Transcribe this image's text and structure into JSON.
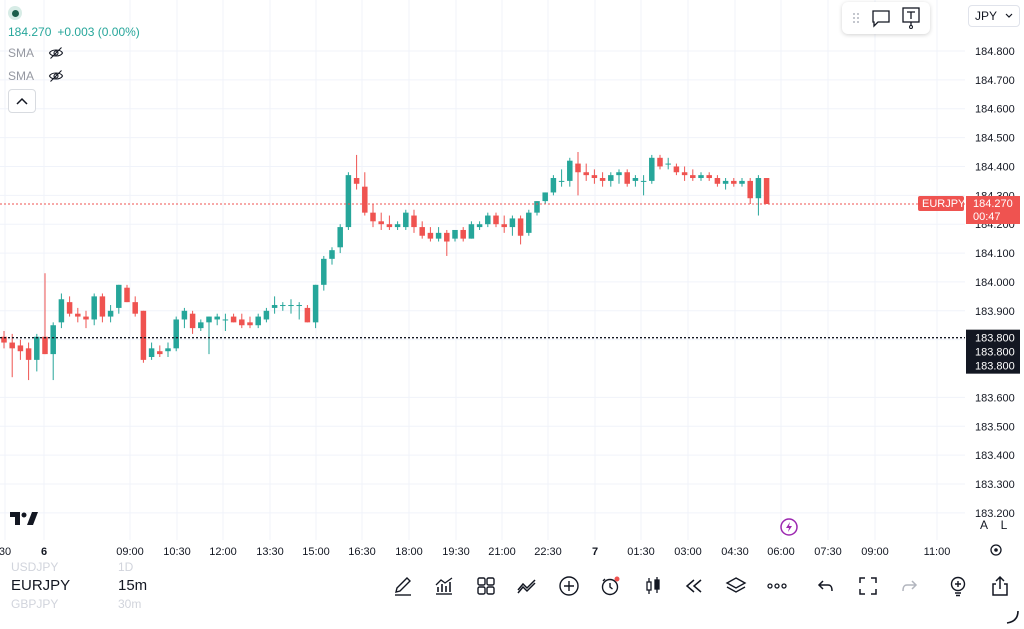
{
  "legend": {
    "price": "184.270",
    "change": "+0.003 (0.00%)",
    "indicators": [
      {
        "label": "SMA"
      },
      {
        "label": "SMA"
      }
    ]
  },
  "currency_selector": {
    "value": "JPY"
  },
  "scale_buttons": {
    "auto": "A",
    "log": "L"
  },
  "symbol_wheel": {
    "prev": "USDJPY",
    "current": "EURJPY",
    "next": "GBPJPY"
  },
  "timeframe_wheel": {
    "prev": "1D",
    "current": "15m",
    "next": "30m"
  },
  "colors": {
    "up": "#26a69a",
    "down": "#ef5350",
    "grid": "#f0f3fa",
    "price_line": "#ef5350",
    "crosshair": "#131722"
  },
  "icons": [
    "tradingview-logo-icon",
    "pencil-icon",
    "indicators-icon",
    "grid-layout-icon",
    "compare-icon",
    "plus-circle-icon",
    "alarm-icon",
    "candles-icon",
    "replay-icon",
    "layers-icon",
    "more-icon",
    "undo-icon",
    "fullscreen-icon",
    "redo-icon",
    "bulb-icon",
    "share-icon",
    "lightning-icon",
    "eye-off-icon",
    "chevron-up-icon",
    "chevron-down-icon",
    "chat-icon",
    "text-tool-icon",
    "gear-icon"
  ],
  "chart_data": {
    "type": "candlestick",
    "symbol": "EURJPY",
    "y_ticks": [
      "184.800",
      "184.700",
      "184.600",
      "184.500",
      "184.400",
      "184.300",
      "184.200",
      "184.100",
      "184.000",
      "183.900",
      "183.800",
      "183.600",
      "183.500",
      "183.400",
      "183.300",
      "183.200"
    ],
    "x_ticks": [
      "30",
      "6",
      "09:00",
      "10:30",
      "12:00",
      "13:30",
      "15:00",
      "16:30",
      "18:00",
      "19:30",
      "21:00",
      "22:30",
      "7",
      "01:30",
      "03:00",
      "04:30",
      "06:00",
      "07:30",
      "09:00",
      "11:00"
    ],
    "ylim": [
      183.2,
      184.85
    ],
    "last_price": {
      "label": "EURJPY",
      "value": "184.270",
      "countdown": "00:47"
    },
    "crosshair": {
      "value": "183.800",
      "value2": "183.800",
      "value3": "183.800"
    },
    "candles": [
      {
        "o": 183.81,
        "h": 183.83,
        "l": 183.77,
        "c": 183.79
      },
      {
        "o": 183.79,
        "h": 183.82,
        "l": 183.67,
        "c": 183.77
      },
      {
        "o": 183.78,
        "h": 183.8,
        "l": 183.73,
        "c": 183.76
      },
      {
        "o": 183.77,
        "h": 183.79,
        "l": 183.66,
        "c": 183.73
      },
      {
        "o": 183.73,
        "h": 183.82,
        "l": 183.69,
        "c": 183.81
      },
      {
        "o": 183.81,
        "h": 184.03,
        "l": 183.75,
        "c": 183.75
      },
      {
        "o": 183.75,
        "h": 183.86,
        "l": 183.66,
        "c": 183.85
      },
      {
        "o": 183.86,
        "h": 183.96,
        "l": 183.84,
        "c": 183.94
      },
      {
        "o": 183.93,
        "h": 183.95,
        "l": 183.88,
        "c": 183.89
      },
      {
        "o": 183.89,
        "h": 183.91,
        "l": 183.86,
        "c": 183.88
      },
      {
        "o": 183.88,
        "h": 183.9,
        "l": 183.84,
        "c": 183.87
      },
      {
        "o": 183.87,
        "h": 183.96,
        "l": 183.85,
        "c": 183.95
      },
      {
        "o": 183.95,
        "h": 183.96,
        "l": 183.86,
        "c": 183.88
      },
      {
        "o": 183.88,
        "h": 183.92,
        "l": 183.86,
        "c": 183.9
      },
      {
        "o": 183.91,
        "h": 183.99,
        "l": 183.89,
        "c": 183.99
      },
      {
        "o": 183.98,
        "h": 183.99,
        "l": 183.93,
        "c": 183.93
      },
      {
        "o": 183.93,
        "h": 183.95,
        "l": 183.88,
        "c": 183.89
      },
      {
        "o": 183.9,
        "h": 183.9,
        "l": 183.72,
        "c": 183.73
      },
      {
        "o": 183.74,
        "h": 183.79,
        "l": 183.73,
        "c": 183.77
      },
      {
        "o": 183.76,
        "h": 183.78,
        "l": 183.74,
        "c": 183.75
      },
      {
        "o": 183.76,
        "h": 183.79,
        "l": 183.74,
        "c": 183.77
      },
      {
        "o": 183.77,
        "h": 183.88,
        "l": 183.76,
        "c": 183.87
      },
      {
        "o": 183.87,
        "h": 183.91,
        "l": 183.84,
        "c": 183.9
      },
      {
        "o": 183.89,
        "h": 183.9,
        "l": 183.82,
        "c": 183.84
      },
      {
        "o": 183.84,
        "h": 183.87,
        "l": 183.83,
        "c": 183.86
      },
      {
        "o": 183.86,
        "h": 183.88,
        "l": 183.75,
        "c": 183.88
      },
      {
        "o": 183.87,
        "h": 183.89,
        "l": 183.85,
        "c": 183.88
      },
      {
        "o": 183.87,
        "h": 183.89,
        "l": 183.83,
        "c": 183.87
      },
      {
        "o": 183.88,
        "h": 183.89,
        "l": 183.86,
        "c": 183.86
      },
      {
        "o": 183.87,
        "h": 183.89,
        "l": 183.84,
        "c": 183.85
      },
      {
        "o": 183.86,
        "h": 183.88,
        "l": 183.84,
        "c": 183.85
      },
      {
        "o": 183.85,
        "h": 183.89,
        "l": 183.84,
        "c": 183.88
      },
      {
        "o": 183.87,
        "h": 183.91,
        "l": 183.86,
        "c": 183.9
      },
      {
        "o": 183.91,
        "h": 183.95,
        "l": 183.89,
        "c": 183.92
      },
      {
        "o": 183.92,
        "h": 183.93,
        "l": 183.9,
        "c": 183.92
      },
      {
        "o": 183.92,
        "h": 183.94,
        "l": 183.89,
        "c": 183.92
      },
      {
        "o": 183.92,
        "h": 183.93,
        "l": 183.87,
        "c": 183.92
      },
      {
        "o": 183.91,
        "h": 183.92,
        "l": 183.86,
        "c": 183.86
      },
      {
        "o": 183.86,
        "h": 183.99,
        "l": 183.84,
        "c": 183.99
      },
      {
        "o": 183.99,
        "h": 184.09,
        "l": 183.97,
        "c": 184.08
      },
      {
        "o": 184.08,
        "h": 184.12,
        "l": 184.06,
        "c": 184.11
      },
      {
        "o": 184.12,
        "h": 184.2,
        "l": 184.1,
        "c": 184.19
      },
      {
        "o": 184.19,
        "h": 184.38,
        "l": 184.18,
        "c": 184.37
      },
      {
        "o": 184.36,
        "h": 184.44,
        "l": 184.32,
        "c": 184.34
      },
      {
        "o": 184.33,
        "h": 184.38,
        "l": 184.23,
        "c": 184.24
      },
      {
        "o": 184.24,
        "h": 184.27,
        "l": 184.19,
        "c": 184.21
      },
      {
        "o": 184.21,
        "h": 184.24,
        "l": 184.18,
        "c": 184.2
      },
      {
        "o": 184.2,
        "h": 184.23,
        "l": 184.18,
        "c": 184.19
      },
      {
        "o": 184.19,
        "h": 184.21,
        "l": 184.18,
        "c": 184.2
      },
      {
        "o": 184.19,
        "h": 184.25,
        "l": 184.18,
        "c": 184.24
      },
      {
        "o": 184.23,
        "h": 184.25,
        "l": 184.17,
        "c": 184.19
      },
      {
        "o": 184.19,
        "h": 184.21,
        "l": 184.15,
        "c": 184.16
      },
      {
        "o": 184.17,
        "h": 184.19,
        "l": 184.14,
        "c": 184.15
      },
      {
        "o": 184.15,
        "h": 184.19,
        "l": 184.14,
        "c": 184.17
      },
      {
        "o": 184.17,
        "h": 184.18,
        "l": 184.09,
        "c": 184.14
      },
      {
        "o": 184.15,
        "h": 184.18,
        "l": 184.14,
        "c": 184.18
      },
      {
        "o": 184.18,
        "h": 184.19,
        "l": 184.14,
        "c": 184.15
      },
      {
        "o": 184.15,
        "h": 184.21,
        "l": 184.15,
        "c": 184.2
      },
      {
        "o": 184.19,
        "h": 184.21,
        "l": 184.18,
        "c": 184.2
      },
      {
        "o": 184.2,
        "h": 184.24,
        "l": 184.19,
        "c": 184.23
      },
      {
        "o": 184.23,
        "h": 184.24,
        "l": 184.19,
        "c": 184.2
      },
      {
        "o": 184.2,
        "h": 184.23,
        "l": 184.17,
        "c": 184.19
      },
      {
        "o": 184.19,
        "h": 184.23,
        "l": 184.16,
        "c": 184.22
      },
      {
        "o": 184.22,
        "h": 184.23,
        "l": 184.13,
        "c": 184.16
      },
      {
        "o": 184.17,
        "h": 184.25,
        "l": 184.16,
        "c": 184.24
      },
      {
        "o": 184.24,
        "h": 184.28,
        "l": 184.23,
        "c": 184.28
      },
      {
        "o": 184.28,
        "h": 184.31,
        "l": 184.27,
        "c": 184.31
      },
      {
        "o": 184.31,
        "h": 184.37,
        "l": 184.3,
        "c": 184.36
      },
      {
        "o": 184.35,
        "h": 184.39,
        "l": 184.33,
        "c": 184.35
      },
      {
        "o": 184.35,
        "h": 184.43,
        "l": 184.33,
        "c": 184.42
      },
      {
        "o": 184.41,
        "h": 184.45,
        "l": 184.3,
        "c": 184.38
      },
      {
        "o": 184.38,
        "h": 184.41,
        "l": 184.35,
        "c": 184.37
      },
      {
        "o": 184.37,
        "h": 184.39,
        "l": 184.34,
        "c": 184.36
      },
      {
        "o": 184.36,
        "h": 184.38,
        "l": 184.33,
        "c": 184.35
      },
      {
        "o": 184.35,
        "h": 184.38,
        "l": 184.33,
        "c": 184.37
      },
      {
        "o": 184.37,
        "h": 184.39,
        "l": 184.34,
        "c": 184.38
      },
      {
        "o": 184.38,
        "h": 184.39,
        "l": 184.33,
        "c": 184.34
      },
      {
        "o": 184.35,
        "h": 184.37,
        "l": 184.33,
        "c": 184.36
      },
      {
        "o": 184.35,
        "h": 184.37,
        "l": 184.3,
        "c": 184.35
      },
      {
        "o": 184.35,
        "h": 184.44,
        "l": 184.34,
        "c": 184.43
      },
      {
        "o": 184.43,
        "h": 184.44,
        "l": 184.39,
        "c": 184.4
      },
      {
        "o": 184.41,
        "h": 184.43,
        "l": 184.39,
        "c": 184.41
      },
      {
        "o": 184.4,
        "h": 184.41,
        "l": 184.37,
        "c": 184.38
      },
      {
        "o": 184.38,
        "h": 184.4,
        "l": 184.35,
        "c": 184.37
      },
      {
        "o": 184.37,
        "h": 184.39,
        "l": 184.35,
        "c": 184.36
      },
      {
        "o": 184.36,
        "h": 184.38,
        "l": 184.35,
        "c": 184.37
      },
      {
        "o": 184.37,
        "h": 184.38,
        "l": 184.35,
        "c": 184.36
      },
      {
        "o": 184.36,
        "h": 184.37,
        "l": 184.33,
        "c": 184.34
      },
      {
        "o": 184.34,
        "h": 184.36,
        "l": 184.32,
        "c": 184.35
      },
      {
        "o": 184.35,
        "h": 184.36,
        "l": 184.33,
        "c": 184.34
      },
      {
        "o": 184.34,
        "h": 184.36,
        "l": 184.33,
        "c": 184.35
      },
      {
        "o": 184.35,
        "h": 184.36,
        "l": 184.27,
        "c": 184.29
      },
      {
        "o": 184.29,
        "h": 184.37,
        "l": 184.23,
        "c": 184.36
      },
      {
        "o": 184.36,
        "h": 184.36,
        "l": 184.27,
        "c": 184.27
      }
    ]
  }
}
